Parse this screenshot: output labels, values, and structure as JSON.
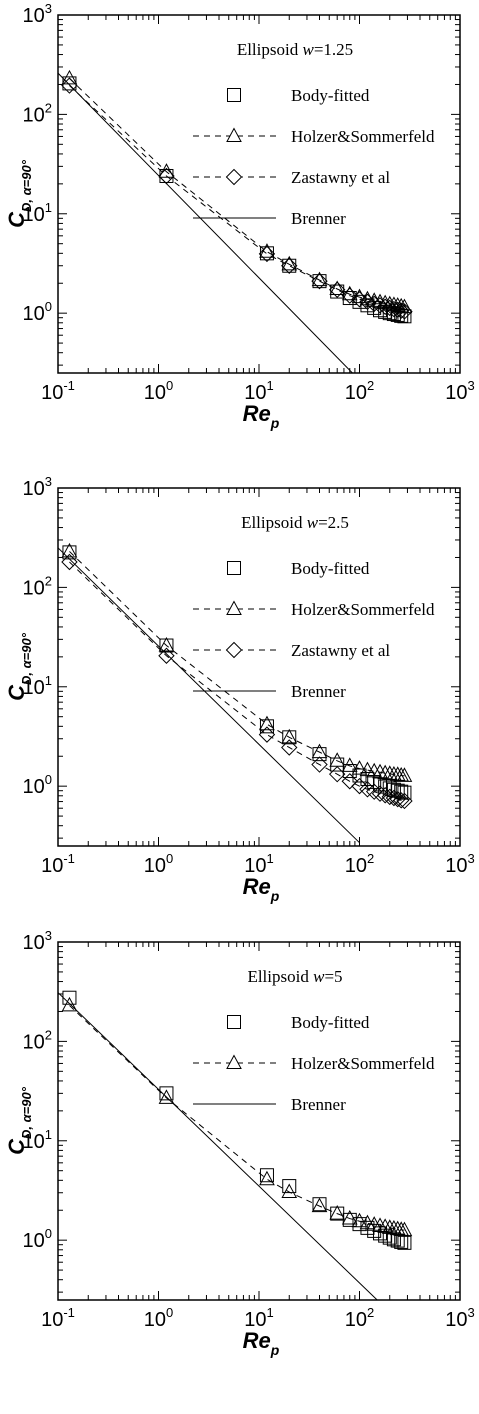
{
  "chart_data": [
    {
      "type": "scatter",
      "title": "Ellipsoid w=1.25",
      "title_parts": {
        "prefix": "Ellipsoid ",
        "var": "w",
        "suffix": "=1.25"
      },
      "xlabel": {
        "base": "Re",
        "sub": "p"
      },
      "ylabel": {
        "base": "C",
        "sub": "D, α=90°"
      },
      "xscale": "log",
      "yscale": "log",
      "xlim": [
        0.1,
        1000
      ],
      "ylim": [
        0.25,
        1000
      ],
      "x_ticks": [
        {
          "base": "10",
          "exp": "-1"
        },
        {
          "base": "10",
          "exp": "0"
        },
        {
          "base": "10",
          "exp": "1"
        },
        {
          "base": "10",
          "exp": "2"
        },
        {
          "base": "10",
          "exp": "3"
        }
      ],
      "y_ticks": [
        {
          "base": "10",
          "exp": "0"
        },
        {
          "base": "10",
          "exp": "1"
        },
        {
          "base": "10",
          "exp": "2"
        },
        {
          "base": "10",
          "exp": "3"
        }
      ],
      "legend_position": "top-right",
      "series": [
        {
          "name": "Body-fitted",
          "marker": "square",
          "line": "none",
          "x": [
            0.13,
            1.2,
            12,
            20,
            40,
            60,
            80,
            100,
            120,
            140,
            160,
            180,
            200,
            220,
            240,
            260,
            280
          ],
          "y": [
            205,
            24,
            4.0,
            3.0,
            2.1,
            1.65,
            1.42,
            1.3,
            1.2,
            1.13,
            1.07,
            1.03,
            1.0,
            0.98,
            0.96,
            0.94,
            0.93
          ]
        },
        {
          "name": "Holzer&Sommerfeld",
          "marker": "triangle",
          "line": "dashed",
          "x": [
            0.13,
            1.2,
            12,
            20,
            40,
            60,
            80,
            100,
            120,
            140,
            160,
            180,
            200,
            220,
            240,
            260,
            280
          ],
          "y": [
            230,
            26.5,
            4.15,
            3.1,
            2.15,
            1.75,
            1.55,
            1.45,
            1.38,
            1.33,
            1.29,
            1.26,
            1.23,
            1.21,
            1.19,
            1.17,
            1.15
          ]
        },
        {
          "name": "Zastawny et al",
          "marker": "diamond",
          "line": "dashed",
          "x": [
            0.13,
            1.2,
            12,
            20,
            40,
            60,
            80,
            100,
            120,
            140,
            160,
            180,
            200,
            220,
            240,
            260,
            280
          ],
          "y": [
            195,
            24,
            3.95,
            3.0,
            2.1,
            1.72,
            1.5,
            1.38,
            1.3,
            1.24,
            1.2,
            1.16,
            1.13,
            1.1,
            1.08,
            1.06,
            1.04
          ]
        },
        {
          "name": "Brenner",
          "marker": "none",
          "line": "solid",
          "x": [
            0.1,
            85
          ],
          "y": [
            260,
            0.25
          ]
        }
      ]
    },
    {
      "type": "scatter",
      "title": "Ellipsoid w=2.5",
      "title_parts": {
        "prefix": "Ellipsoid ",
        "var": "w",
        "suffix": "=2.5"
      },
      "xlabel": {
        "base": "Re",
        "sub": "p"
      },
      "ylabel": {
        "base": "C",
        "sub": "D, α=90°"
      },
      "xscale": "log",
      "yscale": "log",
      "xlim": [
        0.1,
        1000
      ],
      "ylim": [
        0.25,
        1000
      ],
      "x_ticks": [
        {
          "base": "10",
          "exp": "-1"
        },
        {
          "base": "10",
          "exp": "0"
        },
        {
          "base": "10",
          "exp": "1"
        },
        {
          "base": "10",
          "exp": "2"
        },
        {
          "base": "10",
          "exp": "3"
        }
      ],
      "y_ticks": [
        {
          "base": "10",
          "exp": "0"
        },
        {
          "base": "10",
          "exp": "1"
        },
        {
          "base": "10",
          "exp": "2"
        },
        {
          "base": "10",
          "exp": "3"
        }
      ],
      "legend_position": "top-right",
      "series": [
        {
          "name": "Body-fitted",
          "marker": "square",
          "line": "none",
          "x": [
            0.13,
            1.2,
            12,
            20,
            40,
            60,
            80,
            100,
            120,
            140,
            160,
            180,
            200,
            220,
            240,
            260,
            280
          ],
          "y": [
            225,
            26,
            4.0,
            3.1,
            2.1,
            1.65,
            1.42,
            1.28,
            1.18,
            1.1,
            1.04,
            0.99,
            0.95,
            0.92,
            0.9,
            0.88,
            0.86
          ]
        },
        {
          "name": "Holzer&Sommerfeld",
          "marker": "triangle",
          "line": "dashed",
          "x": [
            0.13,
            1.2,
            12,
            20,
            40,
            60,
            80,
            100,
            120,
            140,
            160,
            180,
            200,
            220,
            240,
            260,
            280
          ],
          "y": [
            230,
            26,
            4.2,
            3.1,
            2.2,
            1.8,
            1.6,
            1.5,
            1.45,
            1.41,
            1.38,
            1.35,
            1.33,
            1.31,
            1.3,
            1.28,
            1.27
          ]
        },
        {
          "name": "Zastawny et al",
          "marker": "diamond",
          "line": "dashed",
          "x": [
            0.13,
            1.2,
            12,
            20,
            40,
            60,
            80,
            100,
            120,
            140,
            160,
            180,
            200,
            220,
            240,
            260,
            280
          ],
          "y": [
            180,
            20.5,
            3.3,
            2.45,
            1.65,
            1.32,
            1.12,
            1.0,
            0.93,
            0.88,
            0.84,
            0.81,
            0.78,
            0.76,
            0.74,
            0.72,
            0.71
          ]
        },
        {
          "name": "Brenner",
          "marker": "none",
          "line": "solid",
          "x": [
            0.1,
            100
          ],
          "y": [
            250,
            0.27
          ]
        }
      ]
    },
    {
      "type": "scatter",
      "title": "Ellipsoid w=5",
      "title_parts": {
        "prefix": "Ellipsoid ",
        "var": "w",
        "suffix": "=5"
      },
      "xlabel": {
        "base": "Re",
        "sub": "p"
      },
      "ylabel": {
        "base": "C",
        "sub": "D, α=90°"
      },
      "xscale": "log",
      "yscale": "log",
      "xlim": [
        0.1,
        1000
      ],
      "ylim": [
        0.25,
        1000
      ],
      "x_ticks": [
        {
          "base": "10",
          "exp": "-1"
        },
        {
          "base": "10",
          "exp": "0"
        },
        {
          "base": "10",
          "exp": "1"
        },
        {
          "base": "10",
          "exp": "2"
        },
        {
          "base": "10",
          "exp": "3"
        }
      ],
      "y_ticks": [
        {
          "base": "10",
          "exp": "0"
        },
        {
          "base": "10",
          "exp": "1"
        },
        {
          "base": "10",
          "exp": "2"
        },
        {
          "base": "10",
          "exp": "3"
        }
      ],
      "legend_position": "top-right",
      "series": [
        {
          "name": "Body-fitted",
          "marker": "square",
          "line": "none",
          "x": [
            0.13,
            1.2,
            12,
            20,
            40,
            60,
            80,
            100,
            120,
            140,
            160,
            180,
            200,
            220,
            240,
            260,
            280
          ],
          "y": [
            275,
            30,
            4.5,
            3.5,
            2.3,
            1.85,
            1.6,
            1.45,
            1.33,
            1.24,
            1.17,
            1.11,
            1.06,
            1.02,
            0.99,
            0.96,
            0.94
          ]
        },
        {
          "name": "Holzer&Sommerfeld",
          "marker": "triangle",
          "line": "dashed",
          "x": [
            0.13,
            1.2,
            12,
            20,
            40,
            60,
            80,
            100,
            120,
            140,
            160,
            180,
            200,
            220,
            240,
            260,
            280
          ],
          "y": [
            230,
            27,
            4.1,
            3.05,
            2.2,
            1.85,
            1.65,
            1.55,
            1.48,
            1.43,
            1.39,
            1.36,
            1.33,
            1.31,
            1.29,
            1.27,
            1.26
          ]
        },
        {
          "name": "Brenner",
          "marker": "none",
          "line": "solid",
          "x": [
            0.1,
            150
          ],
          "y": [
            310,
            0.25
          ]
        }
      ]
    }
  ]
}
